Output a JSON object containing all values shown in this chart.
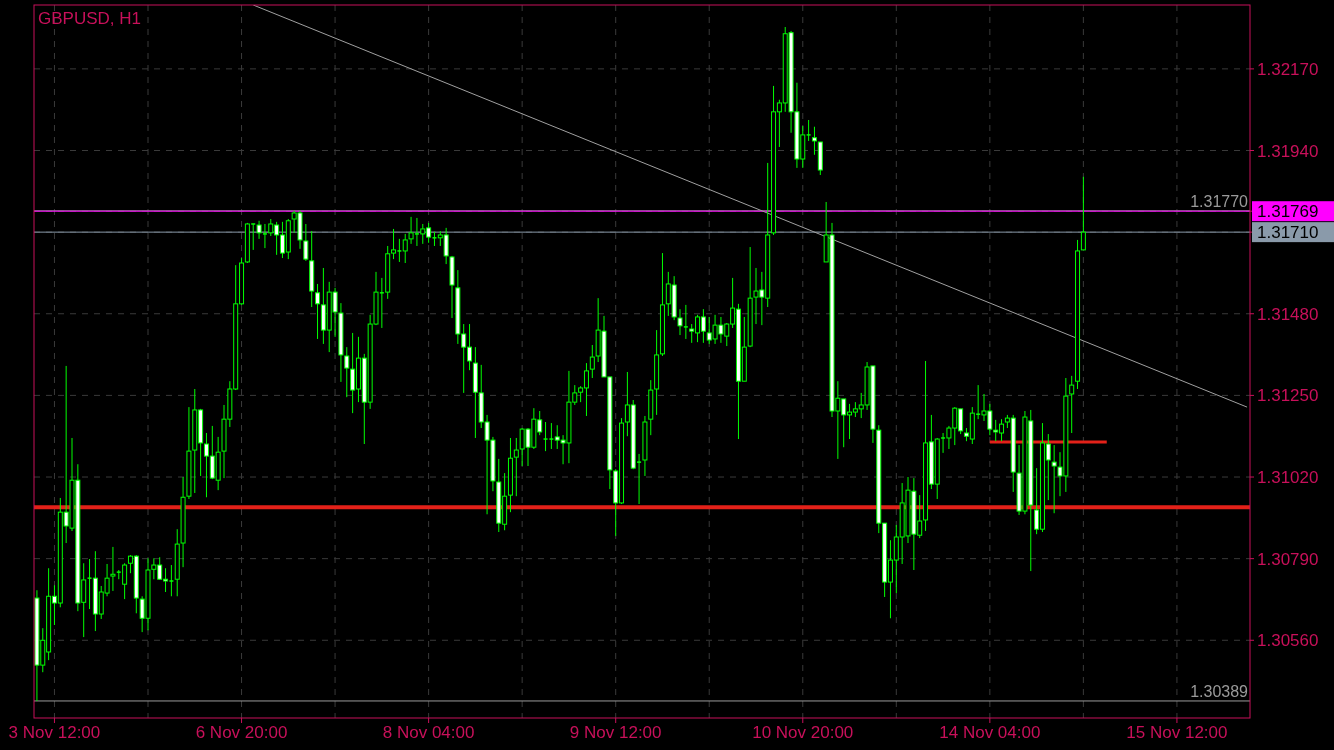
{
  "chart_data": {
    "type": "candlestick",
    "title": "GBPUSD, H1",
    "categories": [
      null,
      null,
      null,
      "3 Nov 12:00",
      null,
      null,
      null,
      null,
      null,
      null,
      null,
      null,
      null,
      null,
      null,
      null,
      null,
      null,
      null,
      null,
      null,
      null,
      null,
      null,
      null,
      null,
      null,
      null,
      null,
      null,
      null,
      null,
      null,
      null,
      null,
      "6 Nov 20:00",
      null,
      null,
      null,
      null,
      null,
      null,
      null,
      null,
      null,
      null,
      null,
      null,
      null,
      null,
      null,
      null,
      null,
      null,
      null,
      null,
      null,
      null,
      null,
      null,
      null,
      null,
      null,
      null,
      null,
      null,
      null,
      "8 Nov 04:00",
      null,
      null,
      null,
      null,
      null,
      null,
      null,
      null,
      null,
      null,
      null,
      null,
      null,
      null,
      null,
      null,
      null,
      null,
      null,
      null,
      null,
      null,
      null,
      null,
      null,
      null,
      null,
      null,
      null,
      null,
      null,
      "9 Nov 12:00",
      null,
      null,
      null,
      null,
      null,
      null,
      null,
      null,
      null,
      null,
      null,
      null,
      null,
      null,
      null,
      null,
      null,
      null,
      null,
      null,
      null,
      null,
      null,
      null,
      null,
      null,
      null,
      null,
      null,
      null,
      null,
      "10 Nov 20:00",
      null,
      null,
      null,
      null,
      null,
      null,
      null,
      null,
      null,
      null,
      null,
      null,
      null,
      null,
      null,
      null,
      null,
      null,
      null,
      null,
      null,
      null,
      null,
      null,
      null,
      null,
      null,
      null,
      null,
      null,
      null,
      "14 Nov 04:00",
      null,
      null,
      null,
      null,
      null,
      null,
      null,
      null,
      null,
      null,
      null,
      null,
      null,
      null,
      null,
      null,
      null,
      null,
      null,
      null,
      null,
      null,
      null,
      null,
      null,
      null,
      null,
      null,
      null,
      null,
      null,
      "15 Nov 12:00",
      null,
      null,
      null,
      null,
      null,
      null,
      null,
      null,
      null,
      null,
      null,
      null
    ],
    "ohlc": [
      [
        1.30679,
        1.30701,
        1.30389,
        1.3049
      ],
      [
        1.3049,
        1.30594,
        1.3047,
        1.3056
      ],
      [
        1.30527,
        1.30763,
        1.30504,
        1.30684
      ],
      [
        1.30684,
        1.30715,
        1.30603,
        1.30665
      ],
      [
        1.30665,
        1.30961,
        1.30653,
        1.30921
      ],
      [
        1.30921,
        1.31333,
        1.30834,
        1.30882
      ],
      [
        1.30876,
        1.3113,
        1.30868,
        1.31011
      ],
      [
        1.31011,
        1.31056,
        1.30642,
        1.30665
      ],
      [
        1.30667,
        1.30777,
        1.30569,
        1.3073
      ],
      [
        1.30735,
        1.30789,
        1.30648,
        1.30735
      ],
      [
        1.30735,
        1.30811,
        1.30586,
        1.30634
      ],
      [
        1.30634,
        1.30713,
        1.3062,
        1.30696
      ],
      [
        1.30693,
        1.30775,
        1.30684,
        1.30735
      ],
      [
        1.30741,
        1.30823,
        1.30699,
        1.30746
      ],
      [
        1.30752,
        1.30758,
        1.30732,
        1.30752
      ],
      [
        1.30718,
        1.30777,
        1.30676,
        1.30772
      ],
      [
        1.30777,
        1.308,
        1.30749,
        1.30797
      ],
      [
        1.30797,
        1.308,
        1.30636,
        1.30679
      ],
      [
        1.30676,
        1.30684,
        1.30583,
        1.30622
      ],
      [
        1.30622,
        1.30791,
        1.30588,
        1.30758
      ],
      [
        1.3076,
        1.30791,
        1.30732,
        1.30772
      ],
      [
        1.30772,
        1.30794,
        1.3073,
        1.30732
      ],
      [
        1.30732,
        1.30763,
        1.30696,
        1.30727
      ],
      [
        1.30727,
        1.30772,
        1.30684,
        1.30727
      ],
      [
        1.30732,
        1.30873,
        1.30684,
        1.30831
      ],
      [
        1.30834,
        1.3102,
        1.30766,
        1.30963
      ],
      [
        1.30966,
        1.31217,
        1.30958,
        1.31093
      ],
      [
        1.31096,
        1.31268,
        1.30975,
        1.31209
      ],
      [
        1.31209,
        1.31212,
        1.31023,
        1.31116
      ],
      [
        1.31113,
        1.31144,
        1.30963,
        1.31079
      ],
      [
        1.31079,
        1.31164,
        1.31014,
        1.31017
      ],
      [
        1.31011,
        1.31133,
        1.30983,
        1.3109
      ],
      [
        1.31093,
        1.31223,
        1.31017,
        1.31183
      ],
      [
        1.31183,
        1.3129,
        1.31161,
        1.31268
      ],
      [
        1.31268,
        1.31617,
        1.31265,
        1.31508
      ],
      [
        1.31508,
        1.31637,
        1.31505,
        1.31623
      ],
      [
        1.31626,
        1.31736,
        1.31623,
        1.31733
      ],
      [
        1.31733,
        1.31733,
        1.3166,
        1.31733
      ],
      [
        1.3173,
        1.31742,
        1.31691,
        1.31708
      ],
      [
        1.31705,
        1.31733,
        1.31665,
        1.31705
      ],
      [
        1.31708,
        1.31747,
        1.31699,
        1.31733
      ],
      [
        1.3173,
        1.31739,
        1.31646,
        1.31702
      ],
      [
        1.31702,
        1.31739,
        1.31637,
        1.31651
      ],
      [
        1.31654,
        1.31747,
        1.31634,
        1.31742
      ],
      [
        1.31747,
        1.3177,
        1.31708,
        1.31764
      ],
      [
        1.31764,
        1.3177,
        1.31663,
        1.31688
      ],
      [
        1.31685,
        1.31733,
        1.31629,
        1.31634
      ],
      [
        1.31629,
        1.31713,
        1.31499,
        1.31544
      ],
      [
        1.31539,
        1.31564,
        1.31409,
        1.31508
      ],
      [
        1.31505,
        1.31609,
        1.31395,
        1.31434
      ],
      [
        1.31434,
        1.3157,
        1.31372,
        1.31541
      ],
      [
        1.31541,
        1.31553,
        1.31415,
        1.31485
      ],
      [
        1.31482,
        1.3151,
        1.31288,
        1.31364
      ],
      [
        1.31361,
        1.31386,
        1.31245,
        1.31327
      ],
      [
        1.31324,
        1.31426,
        1.312,
        1.31265
      ],
      [
        1.31268,
        1.31415,
        1.31231,
        1.31355
      ],
      [
        1.31355,
        1.31367,
        1.31113,
        1.31231
      ],
      [
        1.31231,
        1.31477,
        1.31212,
        1.31451
      ],
      [
        1.31451,
        1.31598,
        1.31448,
        1.31541
      ],
      [
        1.31539,
        1.31581,
        1.3144,
        1.31539
      ],
      [
        1.31541,
        1.31671,
        1.31522,
        1.31649
      ],
      [
        1.31651,
        1.31719,
        1.31634,
        1.3166
      ],
      [
        1.31657,
        1.31691,
        1.31626,
        1.31657
      ],
      [
        1.31657,
        1.31705,
        1.31623,
        1.31688
      ],
      [
        1.31691,
        1.31753,
        1.31677,
        1.31708
      ],
      [
        1.31705,
        1.3175,
        1.31671,
        1.31705
      ],
      [
        1.31705,
        1.31733,
        1.31677,
        1.31719
      ],
      [
        1.31722,
        1.31736,
        1.3168,
        1.31696
      ],
      [
        1.31694,
        1.31711,
        1.31671,
        1.31694
      ],
      [
        1.31694,
        1.31713,
        1.31671,
        1.31702
      ],
      [
        1.31702,
        1.31722,
        1.3162,
        1.31643
      ],
      [
        1.3164,
        1.31643,
        1.31468,
        1.31561
      ],
      [
        1.31553,
        1.31603,
        1.31395,
        1.31423
      ],
      [
        1.31423,
        1.31451,
        1.31257,
        1.31386
      ],
      [
        1.31386,
        1.31451,
        1.31321,
        1.31347
      ],
      [
        1.31341,
        1.31386,
        1.3113,
        1.31259
      ],
      [
        1.31257,
        1.31336,
        1.31158,
        1.31175
      ],
      [
        1.31175,
        1.31195,
        1.30915,
        1.31124
      ],
      [
        1.31124,
        1.31133,
        1.3098,
        1.31009
      ],
      [
        1.31006,
        1.31071,
        1.30865,
        1.3089
      ],
      [
        1.30887,
        1.31031,
        1.3087,
        1.30966
      ],
      [
        1.30969,
        1.3113,
        1.30921,
        1.31073
      ],
      [
        1.31076,
        1.3113,
        1.30966,
        1.31096
      ],
      [
        1.31099,
        1.31158,
        1.31051,
        1.31155
      ],
      [
        1.31155,
        1.31158,
        1.31051,
        1.31104
      ],
      [
        1.31104,
        1.31214,
        1.31099,
        1.31183
      ],
      [
        1.31181,
        1.31206,
        1.31138,
        1.31147
      ],
      [
        1.31127,
        1.31175,
        1.31093,
        1.31127
      ],
      [
        1.31127,
        1.31172,
        1.31099,
        1.31127
      ],
      [
        1.31133,
        1.31166,
        1.31099,
        1.31124
      ],
      [
        1.31124,
        1.31138,
        1.31056,
        1.31116
      ],
      [
        1.31116,
        1.31319,
        1.31059,
        1.31231
      ],
      [
        1.31231,
        1.31279,
        1.31223,
        1.31257
      ],
      [
        1.31259,
        1.31276,
        1.31231,
        1.31271
      ],
      [
        1.31271,
        1.31341,
        1.31192,
        1.31319
      ],
      [
        1.31324,
        1.31392,
        1.31299,
        1.31358
      ],
      [
        1.31361,
        1.31524,
        1.31344,
        1.31434
      ],
      [
        1.31431,
        1.31474,
        1.31302,
        1.31302
      ],
      [
        1.31302,
        1.31302,
        1.30986,
        1.3104
      ],
      [
        1.31037,
        1.31042,
        1.30854,
        1.30947
      ],
      [
        1.30947,
        1.31186,
        1.30944,
        1.31172
      ],
      [
        1.31175,
        1.31316,
        1.31135,
        1.31223
      ],
      [
        1.31223,
        1.31237,
        1.31042,
        1.31045
      ],
      [
        1.31062,
        1.31085,
        1.30944,
        1.31062
      ],
      [
        1.31068,
        1.31192,
        1.31023,
        1.31175
      ],
      [
        1.31183,
        1.31293,
        1.31138,
        1.31265
      ],
      [
        1.31268,
        1.31434,
        1.31195,
        1.31364
      ],
      [
        1.31367,
        1.31651,
        1.31361,
        1.31505
      ],
      [
        1.31508,
        1.31598,
        1.31474,
        1.31564
      ],
      [
        1.31561,
        1.31586,
        1.31462,
        1.31471
      ],
      [
        1.31468,
        1.31493,
        1.3142,
        1.31446
      ],
      [
        1.31443,
        1.31505,
        1.31409,
        1.31443
      ],
      [
        1.31437,
        1.31451,
        1.31398,
        1.31431
      ],
      [
        1.31426,
        1.31477,
        1.314,
        1.31471
      ],
      [
        1.31471,
        1.31493,
        1.31398,
        1.31431
      ],
      [
        1.31426,
        1.31471,
        1.31395,
        1.31406
      ],
      [
        1.31409,
        1.31477,
        1.31395,
        1.31448
      ],
      [
        1.31448,
        1.31471,
        1.31398,
        1.31423
      ],
      [
        1.31417,
        1.31454,
        1.31389,
        1.31451
      ],
      [
        1.31451,
        1.31581,
        1.3144,
        1.31496
      ],
      [
        1.31493,
        1.31508,
        1.31127,
        1.3129
      ],
      [
        1.3129,
        1.31471,
        1.3129,
        1.31386
      ],
      [
        1.31389,
        1.31668,
        1.31386,
        1.31524
      ],
      [
        1.31527,
        1.31609,
        1.31451,
        1.31544
      ],
      [
        1.31547,
        1.31598,
        1.31448,
        1.31527
      ],
      [
        1.31524,
        1.31905,
        1.31499,
        1.31702
      ],
      [
        1.31708,
        1.32122,
        1.31702,
        1.32049
      ],
      [
        1.32049,
        1.32083,
        1.3195,
        1.32074
      ],
      [
        1.32074,
        1.32288,
        1.32049,
        1.32269
      ],
      [
        1.32272,
        1.32277,
        1.3199,
        1.32049
      ],
      [
        1.32049,
        1.32131,
        1.31891,
        1.31916
      ],
      [
        1.31916,
        1.32009,
        1.31891,
        1.31984
      ],
      [
        1.31984,
        1.32026,
        1.31967,
        1.31984
      ],
      [
        1.31976,
        1.32007,
        1.31928,
        1.31967
      ],
      [
        1.31964,
        1.31964,
        1.31871,
        1.31885
      ],
      [
        1.31626,
        1.31795,
        1.31626,
        1.31702
      ],
      [
        1.31702,
        1.31736,
        1.31189,
        1.31206
      ],
      [
        1.31206,
        1.3129,
        1.31071,
        1.31242
      ],
      [
        1.3124,
        1.3124,
        1.31104,
        1.31195
      ],
      [
        1.31195,
        1.31226,
        1.31127,
        1.31203
      ],
      [
        1.31203,
        1.31231,
        1.31189,
        1.31212
      ],
      [
        1.31212,
        1.31257,
        1.31186,
        1.31223
      ],
      [
        1.31223,
        1.31344,
        1.31209,
        1.3133
      ],
      [
        1.31333,
        1.31333,
        1.31116,
        1.31155
      ],
      [
        1.31152,
        1.31166,
        1.30862,
        1.3089
      ],
      [
        1.3089,
        1.3089,
        1.30682,
        1.30724
      ],
      [
        1.30724,
        1.30842,
        1.30622,
        1.30786
      ],
      [
        1.30786,
        1.30885,
        1.30693,
        1.30851
      ],
      [
        1.30851,
        1.31003,
        1.30775,
        1.30947
      ],
      [
        1.30854,
        1.3102,
        1.30834,
        1.30983
      ],
      [
        1.3098,
        1.31017,
        1.30758,
        1.30859
      ],
      [
        1.30856,
        1.30969,
        1.30848,
        1.30896
      ],
      [
        1.30899,
        1.31347,
        1.30868,
        1.31116
      ],
      [
        1.31119,
        1.31195,
        1.30986,
        1.31
      ],
      [
        1.31,
        1.3113,
        1.30958,
        1.31127
      ],
      [
        1.3113,
        1.31144,
        1.31088,
        1.3113
      ],
      [
        1.3113,
        1.31164,
        1.31099,
        1.31158
      ],
      [
        1.31158,
        1.31217,
        1.3111,
        1.31214
      ],
      [
        1.31212,
        1.31212,
        1.31141,
        1.3115
      ],
      [
        1.31144,
        1.31158,
        1.31121,
        1.31135
      ],
      [
        1.31127,
        1.31217,
        1.31113,
        1.312
      ],
      [
        1.31197,
        1.31279,
        1.31183,
        1.31197
      ],
      [
        1.31195,
        1.31254,
        1.31178,
        1.31206
      ],
      [
        1.31206,
        1.31226,
        1.31138,
        1.31155
      ],
      [
        1.31152,
        1.31181,
        1.31121,
        1.31147
      ],
      [
        1.31144,
        1.31183,
        1.31121,
        1.31169
      ],
      [
        1.31175,
        1.31195,
        1.31158,
        1.31186
      ],
      [
        1.31186,
        1.31195,
        1.30978,
        1.31034
      ],
      [
        1.31031,
        1.3111,
        1.30913,
        1.30924
      ],
      [
        1.30924,
        1.31206,
        1.30915,
        1.31189
      ],
      [
        1.31178,
        1.31209,
        1.30755,
        1.30941
      ],
      [
        1.30927,
        1.31045,
        1.30859,
        1.30873
      ],
      [
        1.30873,
        1.31172,
        1.30865,
        1.31116
      ],
      [
        1.31113,
        1.31141,
        1.30955,
        1.31068
      ],
      [
        1.31062,
        1.3111,
        1.30918,
        1.31051
      ],
      [
        1.31048,
        1.3109,
        1.30966,
        1.31023
      ],
      [
        1.31023,
        1.31299,
        1.30978,
        1.31248
      ],
      [
        1.31254,
        1.31305,
        1.31144,
        1.31279
      ],
      [
        1.3129,
        1.31688,
        1.31268,
        1.31657
      ],
      [
        1.3166,
        1.31866,
        1.3166,
        1.3171
      ],
      null,
      null,
      null,
      null,
      null,
      null,
      null,
      null,
      null,
      null,
      null,
      null,
      null,
      null,
      null,
      null,
      null,
      null,
      null,
      null,
      null,
      null,
      null,
      null,
      null,
      null,
      null,
      null
    ],
    "series": [
      {
        "type": "line",
        "color": "#a0a0a0",
        "values": [
          null,
          null,
          null,
          null,
          null,
          null,
          null,
          null,
          null,
          null,
          null,
          null,
          null,
          null,
          null,
          null,
          null,
          null,
          null,
          null,
          null,
          null,
          null,
          null,
          null,
          null,
          null,
          null,
          null,
          null,
          null,
          null,
          null,
          null,
          null,
          null,
          null,
          1.3235,
          null,
          null,
          null,
          null,
          null,
          null,
          null,
          null,
          null,
          null,
          null,
          null,
          null,
          null,
          null,
          null,
          null,
          null,
          null,
          null,
          null,
          null,
          null,
          null,
          null,
          null,
          null,
          null,
          null,
          null,
          null,
          null,
          null,
          null,
          null,
          null,
          null,
          null,
          null,
          null,
          null,
          null,
          null,
          null,
          null,
          null,
          null,
          null,
          null,
          null,
          null,
          null,
          null,
          null,
          null,
          null,
          null,
          null,
          null,
          null,
          null,
          null,
          null,
          null,
          null,
          null,
          null,
          null,
          null,
          null,
          null,
          null,
          null,
          null,
          null,
          null,
          null,
          null,
          null,
          null,
          null,
          null,
          null,
          null,
          null,
          null,
          null,
          null,
          null,
          null,
          null,
          null,
          null,
          null,
          null,
          null,
          null,
          null,
          null,
          null,
          null,
          null,
          null,
          null,
          null,
          null,
          null,
          null,
          null,
          null,
          null,
          null,
          null,
          null,
          null,
          null,
          null,
          null,
          null,
          null,
          null,
          null,
          null,
          null,
          null,
          null,
          null,
          null,
          null,
          null,
          null,
          null,
          null,
          null,
          null,
          null,
          null,
          null,
          null,
          null,
          null,
          null,
          null,
          null,
          null,
          null,
          null,
          null,
          null,
          null,
          null,
          null,
          null,
          null,
          null,
          null,
          null,
          null,
          null,
          null,
          null,
          null,
          null,
          null,
          null,
          null,
          null,
          null,
          null,
          1.31217
        ]
      },
      {
        "type": "line",
        "color": "#e32119",
        "values": [
          null,
          null,
          null,
          null,
          null,
          null,
          null,
          null,
          null,
          null,
          null,
          null,
          null,
          null,
          null,
          null,
          null,
          null,
          null,
          null,
          null,
          null,
          null,
          null,
          null,
          null,
          null,
          null,
          null,
          null,
          null,
          null,
          null,
          null,
          null,
          null,
          null,
          null,
          null,
          null,
          null,
          null,
          null,
          null,
          null,
          null,
          null,
          null,
          null,
          null,
          null,
          null,
          null,
          null,
          null,
          null,
          null,
          null,
          null,
          null,
          null,
          null,
          null,
          null,
          null,
          null,
          null,
          null,
          null,
          null,
          null,
          null,
          null,
          null,
          null,
          null,
          null,
          null,
          null,
          null,
          null,
          null,
          null,
          null,
          null,
          null,
          null,
          null,
          null,
          null,
          null,
          null,
          null,
          null,
          null,
          null,
          null,
          null,
          null,
          null,
          null,
          null,
          null,
          null,
          null,
          null,
          null,
          null,
          null,
          null,
          null,
          null,
          null,
          null,
          null,
          null,
          null,
          null,
          null,
          null,
          null,
          null,
          null,
          null,
          null,
          null,
          null,
          null,
          null,
          null,
          null,
          null,
          null,
          null,
          null,
          null,
          null,
          null,
          null,
          null,
          null,
          null,
          null,
          null,
          null,
          null,
          null,
          null,
          null,
          null,
          null,
          null,
          null,
          null,
          null,
          null,
          null,
          null,
          null,
          null,
          null,
          null,
          null,
          1.31119,
          1.31119,
          1.31119,
          1.31119,
          1.31119,
          1.31119,
          1.31119,
          1.31119,
          1.31119,
          1.31119,
          1.31119,
          1.31119,
          1.31119,
          1.31119,
          1.31119,
          1.31119,
          1.31119,
          1.31119,
          1.31119,
          1.31119,
          1.31119,
          null,
          null,
          null,
          null,
          null,
          null,
          null,
          null,
          null,
          null,
          null,
          null,
          null,
          null,
          null,
          null,
          null,
          null,
          null,
          null,
          null,
          null,
          null,
          null
        ]
      }
    ],
    "ylim": [
      1.30341,
      1.3235
    ],
    "yticks": [
      {
        "value": 1.3056,
        "label": "1.30560"
      },
      {
        "value": 1.3079,
        "label": "1.30790"
      },
      {
        "value": 1.3102,
        "label": "1.31020"
      },
      {
        "value": 1.3125,
        "label": "1.31250"
      },
      {
        "value": 1.3148,
        "label": "1.31480"
      },
      {
        "value": 1.3171,
        "label": "1.31710"
      },
      {
        "value": 1.31769,
        "label": "1.31769"
      },
      {
        "value": 1.3194,
        "label": "1.31940"
      },
      {
        "value": 1.3217,
        "label": "1.32170"
      }
    ],
    "ref_lines": [
      {
        "axis": "y",
        "value": 1.3177,
        "label": "1.31770",
        "color": "#9a9a9a"
      },
      {
        "axis": "y",
        "value": 1.30389,
        "label": "1.30389",
        "color": "#9a9a9a"
      },
      {
        "axis": "y",
        "value": 1.31769,
        "color": "#ff00ff"
      },
      {
        "axis": "y",
        "value": 1.3171,
        "color": "#8a9aaa"
      },
      {
        "axis": "y",
        "value": 1.30935,
        "color": "#e32119"
      }
    ],
    "grid": true
  }
}
